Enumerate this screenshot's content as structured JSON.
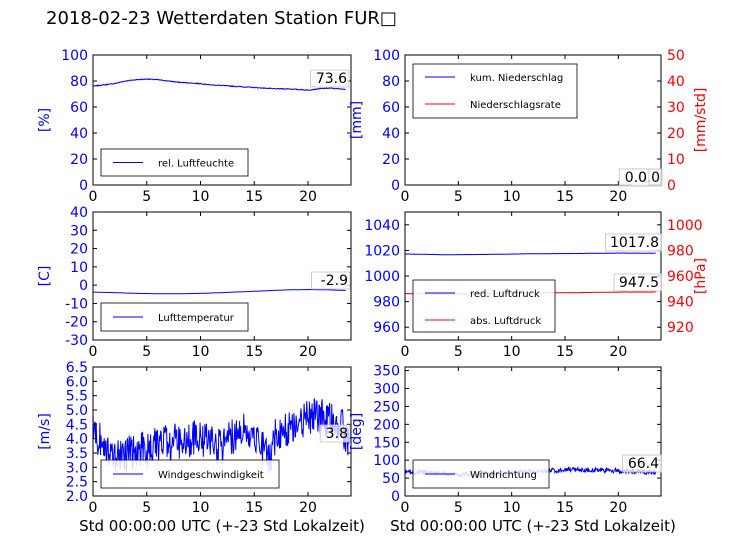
{
  "title": "2018-02-23 Wetterdaten Station FUR□",
  "xlabel": "Std 00:00:00 UTC (+-23 Std Lokalzeit)",
  "colors": {
    "left": "#0000ff",
    "right": "#ff0000",
    "axis": "#000000",
    "grid_box": "#c0c0c0"
  },
  "chart_data": [
    {
      "type": "line",
      "xlim": [
        0,
        24
      ],
      "x_ticks": [
        0,
        5,
        10,
        15,
        20
      ],
      "ylim": [
        0,
        100
      ],
      "y_ticks": [
        0,
        20,
        40,
        60,
        80,
        100
      ],
      "ylabel": "[%]",
      "legend": "lower-left",
      "series": [
        {
          "name": "rel. Luftfeuchte",
          "color": "#0000ff",
          "noise": 0.3,
          "x": [
            0,
            1,
            2,
            3,
            4,
            5,
            6,
            7,
            8,
            9,
            10,
            11,
            12,
            13,
            14,
            15,
            16,
            17,
            18,
            19,
            20,
            21,
            22,
            23.5
          ],
          "y": [
            76,
            77,
            78,
            80,
            81,
            81.5,
            81,
            80,
            79,
            78.5,
            78,
            77,
            76.5,
            76,
            75.5,
            75,
            74.5,
            74,
            74,
            73.5,
            73,
            74,
            74.5,
            73.6
          ]
        }
      ],
      "annotations": [
        "73.6"
      ]
    },
    {
      "type": "line",
      "xlim": [
        0,
        24
      ],
      "x_ticks": [
        0,
        5,
        10,
        15,
        20
      ],
      "ylim": [
        0,
        100
      ],
      "y_ticks": [
        0,
        20,
        40,
        60,
        80,
        100
      ],
      "ylabel": "[mm]",
      "ylim_right": [
        0,
        50
      ],
      "y_ticks_right": [
        0,
        10,
        20,
        30,
        40,
        50
      ],
      "ylabel_right": "[mm/std]",
      "legend": "upper-left",
      "series": [
        {
          "name": "kum. Niederschlag",
          "color": "#0000ff",
          "noise": 0,
          "x": [
            0,
            23.5
          ],
          "y": [
            0,
            0
          ]
        },
        {
          "name": "Niederschlagsrate",
          "color": "#ff0000",
          "noise": 0,
          "axis": "right",
          "x": [
            0,
            23.5
          ],
          "y": [
            0,
            0
          ]
        }
      ],
      "annotations": [
        "0.0",
        "0.0"
      ]
    },
    {
      "type": "line",
      "xlim": [
        0,
        24
      ],
      "x_ticks": [
        0,
        5,
        10,
        15,
        20
      ],
      "ylim": [
        -30,
        40
      ],
      "y_ticks": [
        -30,
        -20,
        -10,
        0,
        10,
        20,
        30,
        40
      ],
      "ylabel": "[C]",
      "legend": "lower-left",
      "series": [
        {
          "name": "Lufttemperatur",
          "color": "#0000ff",
          "noise": 0,
          "x": [
            0,
            2,
            4,
            6,
            8,
            10,
            12,
            14,
            16,
            18,
            20,
            22,
            23.5
          ],
          "y": [
            -3.8,
            -4.1,
            -4.5,
            -4.7,
            -4.7,
            -4.5,
            -4.1,
            -3.6,
            -3.1,
            -2.6,
            -2.4,
            -2.6,
            -2.9
          ]
        }
      ],
      "annotations": [
        "-2.9"
      ]
    },
    {
      "type": "line",
      "xlim": [
        0,
        24
      ],
      "x_ticks": [
        0,
        5,
        10,
        15,
        20
      ],
      "ylim": [
        950,
        1050
      ],
      "y_ticks": [
        960,
        980,
        1000,
        1020,
        1040
      ],
      "ylim_right": [
        910,
        1010
      ],
      "y_ticks_right": [
        920,
        940,
        960,
        980,
        1000
      ],
      "ylabel_right": "[hPa]",
      "legend": "lower-left",
      "series": [
        {
          "name": "red. Luftdruck",
          "color": "#0000ff",
          "noise": 0.1,
          "x": [
            0,
            4,
            8,
            12,
            16,
            20,
            23.5
          ],
          "y": [
            1017.2,
            1016.6,
            1016.9,
            1017.4,
            1017.6,
            1017.9,
            1017.8
          ]
        },
        {
          "name": "abs. Luftdruck",
          "color": "#ff0000",
          "noise": 0.1,
          "axis": "right",
          "x": [
            0,
            4,
            8,
            12,
            16,
            20,
            23.5
          ],
          "y": [
            946.2,
            945.8,
            946.2,
            946.8,
            947.0,
            947.4,
            947.5
          ]
        }
      ],
      "annotations": [
        "1017.8",
        "947.5"
      ]
    },
    {
      "type": "line",
      "xlim": [
        0,
        24
      ],
      "x_ticks": [
        0,
        5,
        10,
        15,
        20
      ],
      "ylim": [
        2.0,
        6.5
      ],
      "y_ticks": [
        2.0,
        2.5,
        3.0,
        3.5,
        4.0,
        4.5,
        5.0,
        5.5,
        6.0,
        6.5
      ],
      "ylabel": "[m/s]",
      "legend": "lower-left",
      "series": [
        {
          "name": "Windgeschwindigkeit",
          "color": "#0000ff",
          "noise": 0.65,
          "x": [
            0,
            1,
            2,
            3,
            4,
            5,
            6,
            7,
            8,
            9,
            10,
            11,
            12,
            13,
            14,
            15,
            16,
            16.5,
            17,
            18,
            19,
            20,
            21,
            22,
            23,
            23.8
          ],
          "y": [
            4.3,
            3.8,
            3.4,
            3.4,
            3.6,
            3.6,
            3.8,
            3.9,
            3.9,
            4.0,
            4.0,
            3.9,
            3.7,
            4.1,
            4.3,
            4.2,
            3.6,
            3.2,
            4.2,
            4.3,
            4.6,
            4.7,
            4.8,
            4.6,
            4.6,
            3.8
          ]
        }
      ],
      "annotations": [
        "3.8"
      ]
    },
    {
      "type": "line",
      "xlim": [
        0,
        24
      ],
      "x_ticks": [
        0,
        5,
        10,
        15,
        20
      ],
      "ylim": [
        0,
        360
      ],
      "y_ticks": [
        0,
        50,
        100,
        150,
        200,
        250,
        300,
        350
      ],
      "ylabel": "[deg]",
      "legend": "lower-left",
      "series": [
        {
          "name": "Windrichtung",
          "color": "#0000ff",
          "noise": 7,
          "x": [
            0,
            2,
            4,
            6,
            8,
            10,
            12,
            14,
            16,
            18,
            20,
            22,
            23.5
          ],
          "y": [
            68,
            65,
            60,
            60,
            62,
            66,
            68,
            72,
            74,
            72,
            70,
            68,
            66.4
          ]
        }
      ],
      "annotations": [
        "66.4"
      ]
    }
  ]
}
